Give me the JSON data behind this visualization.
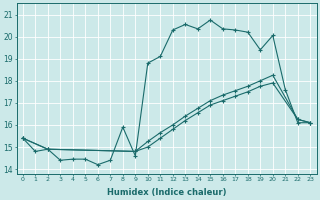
{
  "title": "",
  "xlabel": "Humidex (Indice chaleur)",
  "xlim": [
    -0.5,
    23.5
  ],
  "ylim": [
    13.8,
    21.5
  ],
  "yticks": [
    14,
    15,
    16,
    17,
    18,
    19,
    20,
    21
  ],
  "xticks": [
    0,
    1,
    2,
    3,
    4,
    5,
    6,
    7,
    8,
    9,
    10,
    11,
    12,
    13,
    14,
    15,
    16,
    17,
    18,
    19,
    20,
    21,
    22,
    23
  ],
  "bg_color": "#cce9e9",
  "line_color": "#1a6b6b",
  "grid_color": "#b8d8d8",
  "series1_x": [
    0,
    1,
    2,
    3,
    4,
    5,
    6,
    7,
    8,
    9,
    10,
    11,
    12,
    13,
    14,
    15,
    16,
    17,
    18,
    19,
    20,
    21,
    22,
    23
  ],
  "series1_y": [
    15.4,
    14.8,
    14.9,
    14.4,
    14.45,
    14.45,
    14.2,
    14.4,
    15.9,
    14.6,
    18.8,
    19.1,
    20.3,
    20.55,
    20.35,
    20.75,
    20.35,
    20.3,
    20.2,
    19.4,
    20.05,
    17.6,
    16.1,
    16.1
  ],
  "series2_x": [
    0,
    2,
    9,
    10,
    11,
    12,
    13,
    14,
    15,
    16,
    17,
    18,
    19,
    20,
    22,
    23
  ],
  "series2_y": [
    15.4,
    14.9,
    14.8,
    15.25,
    15.65,
    16.0,
    16.4,
    16.75,
    17.1,
    17.35,
    17.55,
    17.75,
    18.0,
    18.25,
    16.25,
    16.1
  ],
  "series3_x": [
    0,
    2,
    9,
    10,
    11,
    12,
    13,
    14,
    15,
    16,
    17,
    18,
    19,
    20,
    22,
    23
  ],
  "series3_y": [
    15.4,
    14.9,
    14.8,
    15.0,
    15.4,
    15.8,
    16.2,
    16.55,
    16.9,
    17.1,
    17.3,
    17.5,
    17.75,
    17.9,
    16.25,
    16.1
  ]
}
